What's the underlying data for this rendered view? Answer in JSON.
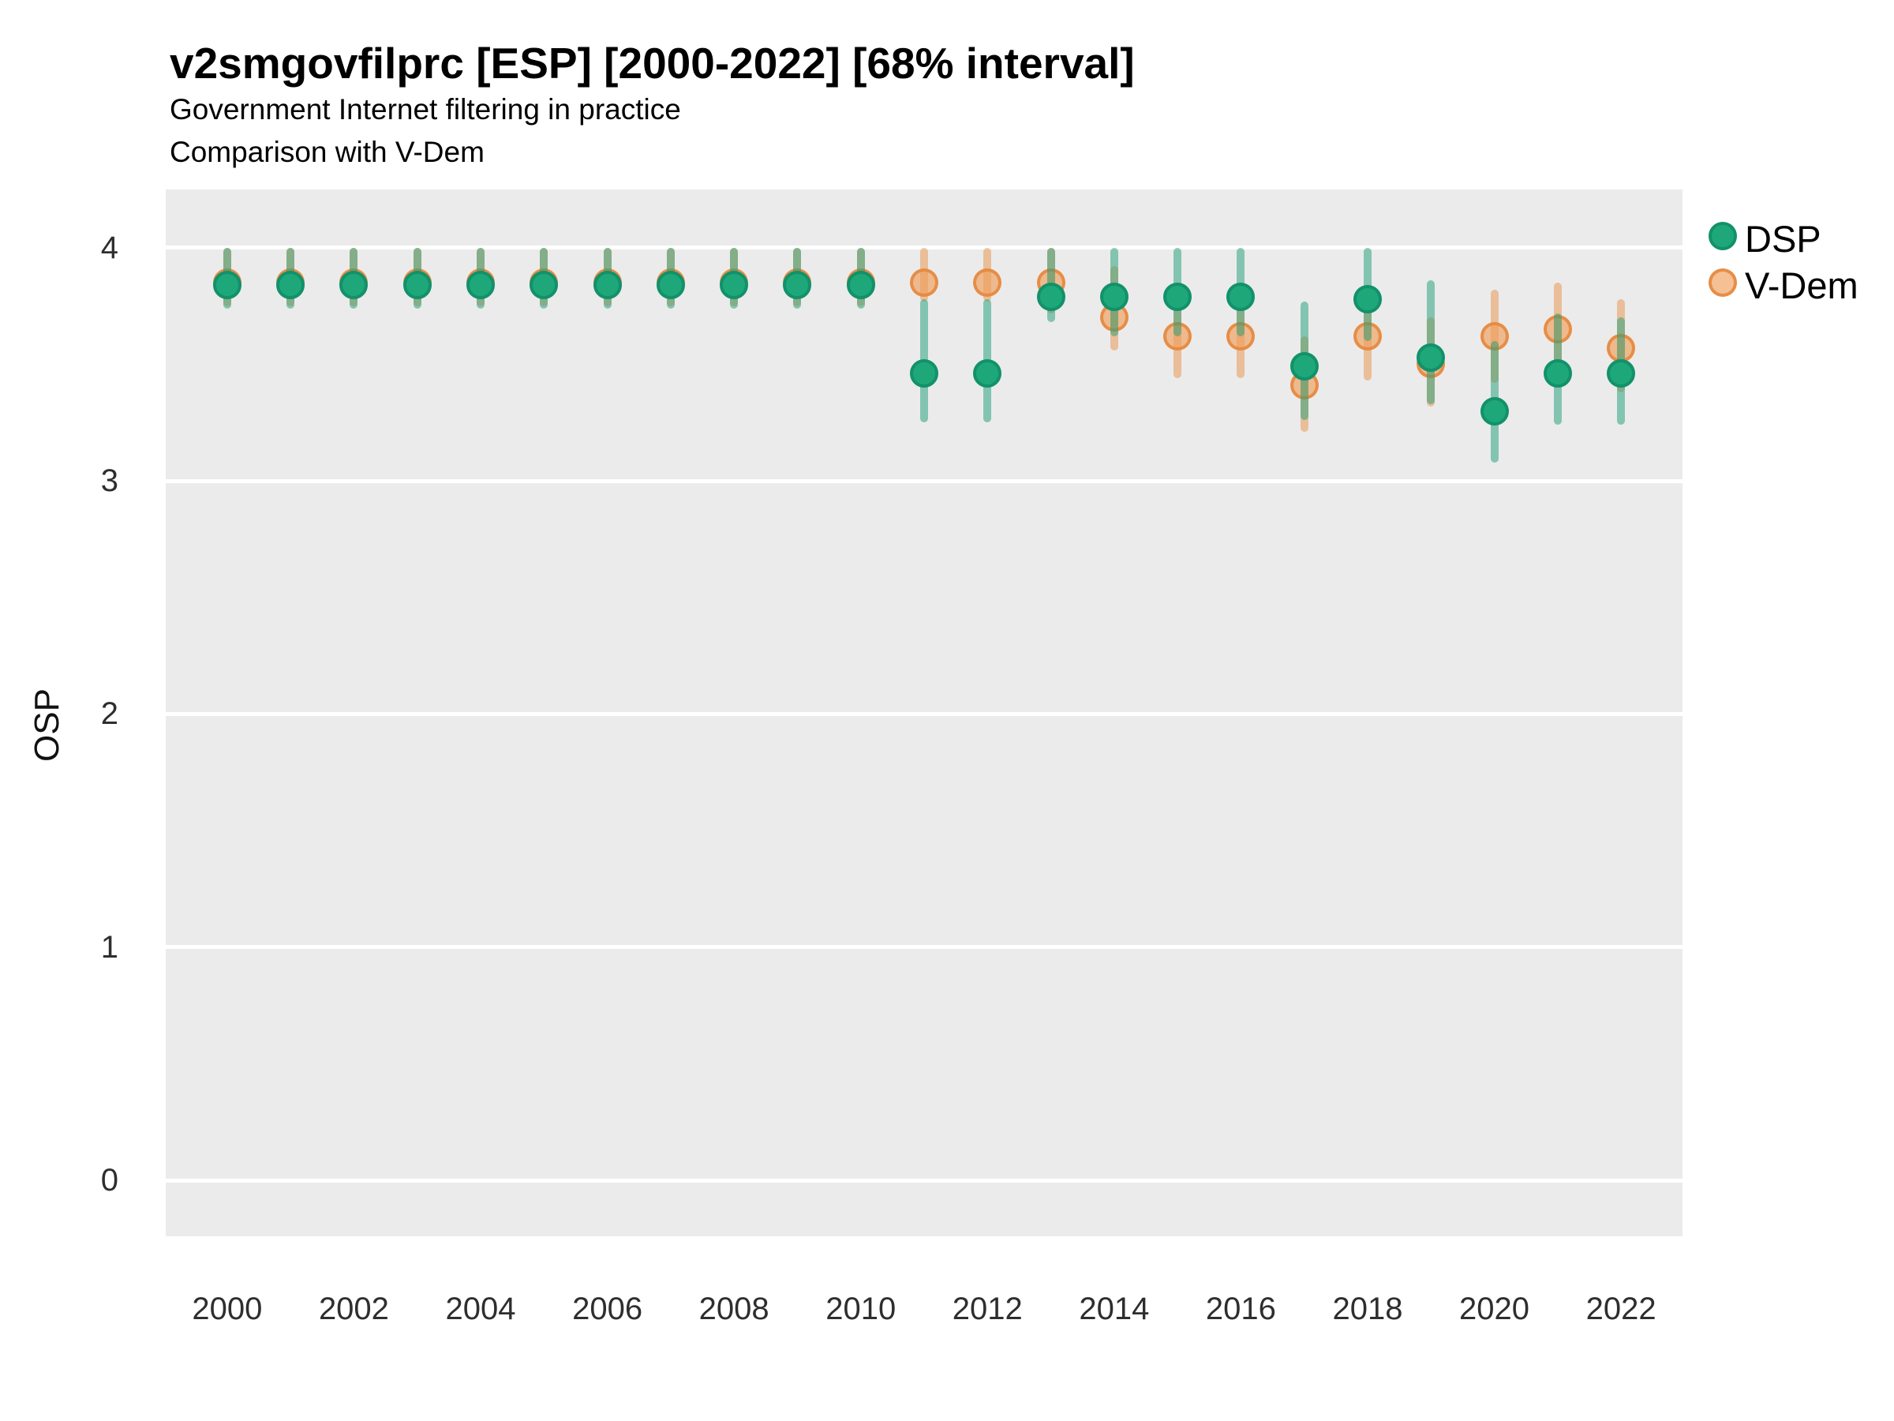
{
  "header": {
    "title": "v2smgovfilprc [ESP] [2000-2022] [68% interval]",
    "subtitle_line1": "Government Internet filtering in practice",
    "subtitle_line2": "Comparison with V-Dem"
  },
  "y_axis": {
    "label": "OSP",
    "ticks": [
      4,
      3,
      2,
      1,
      0
    ]
  },
  "x_axis": {
    "ticks": [
      2000,
      2002,
      2004,
      2006,
      2008,
      2010,
      2012,
      2014,
      2016,
      2018,
      2020,
      2022
    ]
  },
  "legend": {
    "items": [
      {
        "label": "DSP",
        "fill": "#1EA87A",
        "stroke": "#12916A"
      },
      {
        "label": "V-Dem",
        "fill": "rgba(238,158,90,0.65)",
        "stroke": "rgba(230,135,62,0.9)"
      }
    ]
  },
  "colors": {
    "panel_background": "#ebebeb",
    "gridline": "#ffffff",
    "dsp_point": "#1EA87A",
    "dsp_point_stroke": "#12916A",
    "dsp_interval": "rgba(27,158,119,0.5)",
    "vdem_point": "rgba(238,158,90,0.65)",
    "vdem_point_stroke": "rgba(230,135,62,0.9)",
    "vdem_interval": "rgba(233,145,70,0.5)"
  },
  "chart_data": {
    "type": "pointrange-scatter",
    "title": "v2smgovfilprc [ESP] [2000-2022] [68% interval]",
    "subtitle": "Government Internet filtering in practice — Comparison with V-Dem",
    "interval_level": "68%",
    "xlabel": "",
    "ylabel": "OSP",
    "xlim": [
      1999.03,
      2022.97
    ],
    "ylim": [
      -0.24,
      4.25
    ],
    "yticks": [
      0,
      1,
      2,
      3,
      4
    ],
    "xticks": [
      2000,
      2002,
      2004,
      2006,
      2008,
      2010,
      2012,
      2014,
      2016,
      2018,
      2020,
      2022
    ],
    "grid": "white major gridlines on grey panel",
    "legend_position": "right-top",
    "x": [
      2000,
      2001,
      2002,
      2003,
      2004,
      2005,
      2006,
      2007,
      2008,
      2009,
      2010,
      2011,
      2012,
      2013,
      2014,
      2015,
      2016,
      2017,
      2018,
      2019,
      2020,
      2021,
      2022
    ],
    "draw_order_note": "V-Dem series drawn first (underneath), DSP drawn on top",
    "series": [
      {
        "name": "V-Dem",
        "point_fill": "rgba(238,158,90,0.65)",
        "point_stroke": "rgba(230,135,62,0.9)",
        "bar_color": "rgba(233,145,70,0.5)",
        "values": [
          3.85,
          3.85,
          3.85,
          3.85,
          3.85,
          3.85,
          3.85,
          3.85,
          3.85,
          3.85,
          3.85,
          3.85,
          3.85,
          3.85,
          3.7,
          3.62,
          3.62,
          3.41,
          3.62,
          3.5,
          3.62,
          3.65,
          3.57
        ],
        "lo": [
          3.75,
          3.75,
          3.75,
          3.75,
          3.75,
          3.75,
          3.75,
          3.75,
          3.75,
          3.75,
          3.75,
          3.77,
          3.77,
          3.72,
          3.56,
          3.44,
          3.44,
          3.21,
          3.43,
          3.32,
          3.42,
          3.45,
          3.38
        ],
        "hi": [
          4.0,
          4.0,
          4.0,
          4.0,
          4.0,
          4.0,
          4.0,
          4.0,
          4.0,
          4.0,
          4.0,
          4.0,
          4.0,
          4.0,
          3.92,
          3.85,
          3.85,
          3.62,
          3.82,
          3.7,
          3.82,
          3.85,
          3.78
        ]
      },
      {
        "name": "DSP",
        "point_fill": "#1EA87A",
        "point_stroke": "#12916A",
        "bar_color": "rgba(27,158,119,0.5)",
        "values": [
          3.84,
          3.84,
          3.84,
          3.84,
          3.84,
          3.84,
          3.84,
          3.84,
          3.84,
          3.84,
          3.84,
          3.46,
          3.46,
          3.79,
          3.79,
          3.79,
          3.79,
          3.49,
          3.78,
          3.53,
          3.3,
          3.46,
          3.46
        ],
        "lo": [
          3.74,
          3.74,
          3.74,
          3.74,
          3.74,
          3.74,
          3.74,
          3.74,
          3.74,
          3.74,
          3.74,
          3.25,
          3.25,
          3.68,
          3.62,
          3.62,
          3.62,
          3.26,
          3.6,
          3.33,
          3.08,
          3.24,
          3.24
        ],
        "hi": [
          4.0,
          4.0,
          4.0,
          4.0,
          4.0,
          4.0,
          4.0,
          4.0,
          4.0,
          4.0,
          4.0,
          3.78,
          3.78,
          4.0,
          4.0,
          4.0,
          4.0,
          3.77,
          4.0,
          3.86,
          3.6,
          3.72,
          3.7
        ]
      }
    ]
  }
}
